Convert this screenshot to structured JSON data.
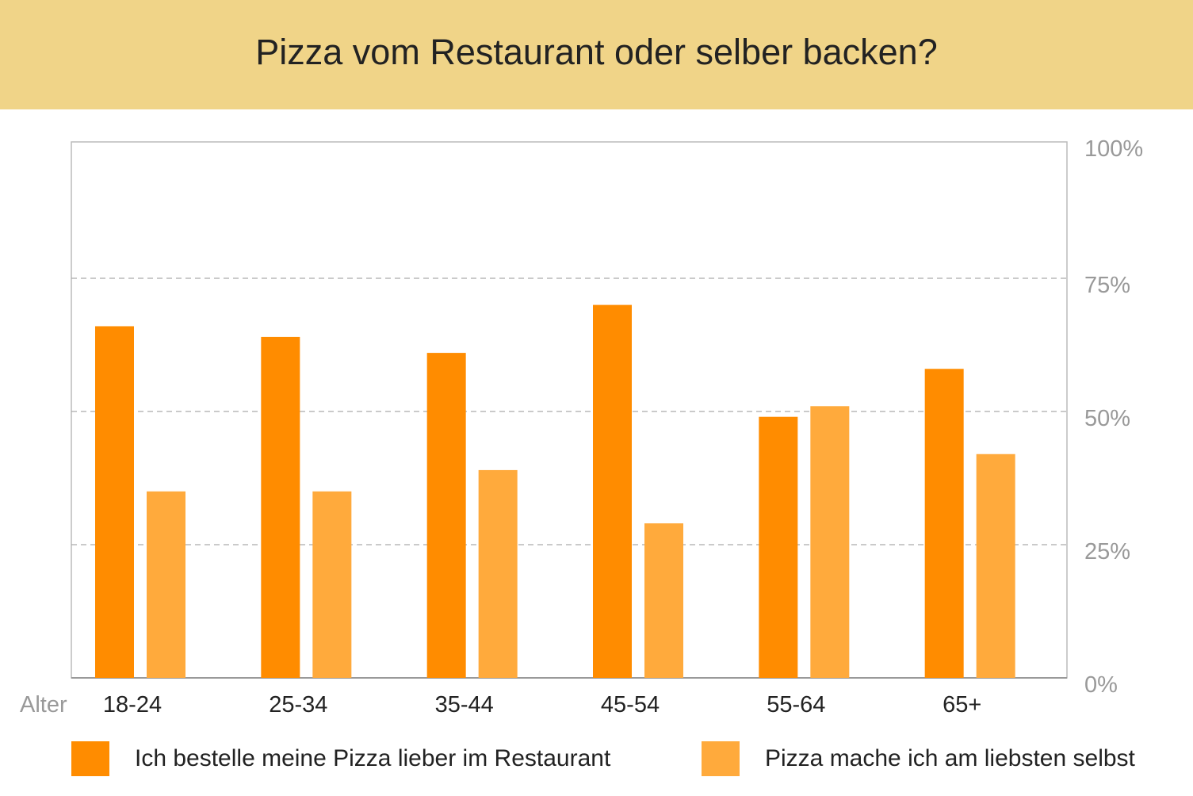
{
  "chart_data": {
    "type": "bar",
    "title": "Pizza vom Restaurant oder selber backen?",
    "xlabel": "Alter",
    "categories": [
      "18-24",
      "25-34",
      "35-44",
      "45-54",
      "55-64",
      "65+"
    ],
    "series": [
      {
        "name": "Ich bestelle meine Pizza lieber im Restaurant",
        "color": "#FF8C00",
        "values": [
          66,
          64,
          61,
          70,
          49,
          58
        ]
      },
      {
        "name": "Pizza mache ich am liebsten selbst",
        "color": "#FFAA3C",
        "values": [
          35,
          35,
          39,
          29,
          51,
          42
        ]
      }
    ],
    "ylim": [
      0,
      100
    ],
    "yticks": [
      "0%",
      "25%",
      "50%",
      "75%",
      "100%"
    ],
    "y_axis_position": "right",
    "grid": true,
    "legend_position": "bottom"
  }
}
